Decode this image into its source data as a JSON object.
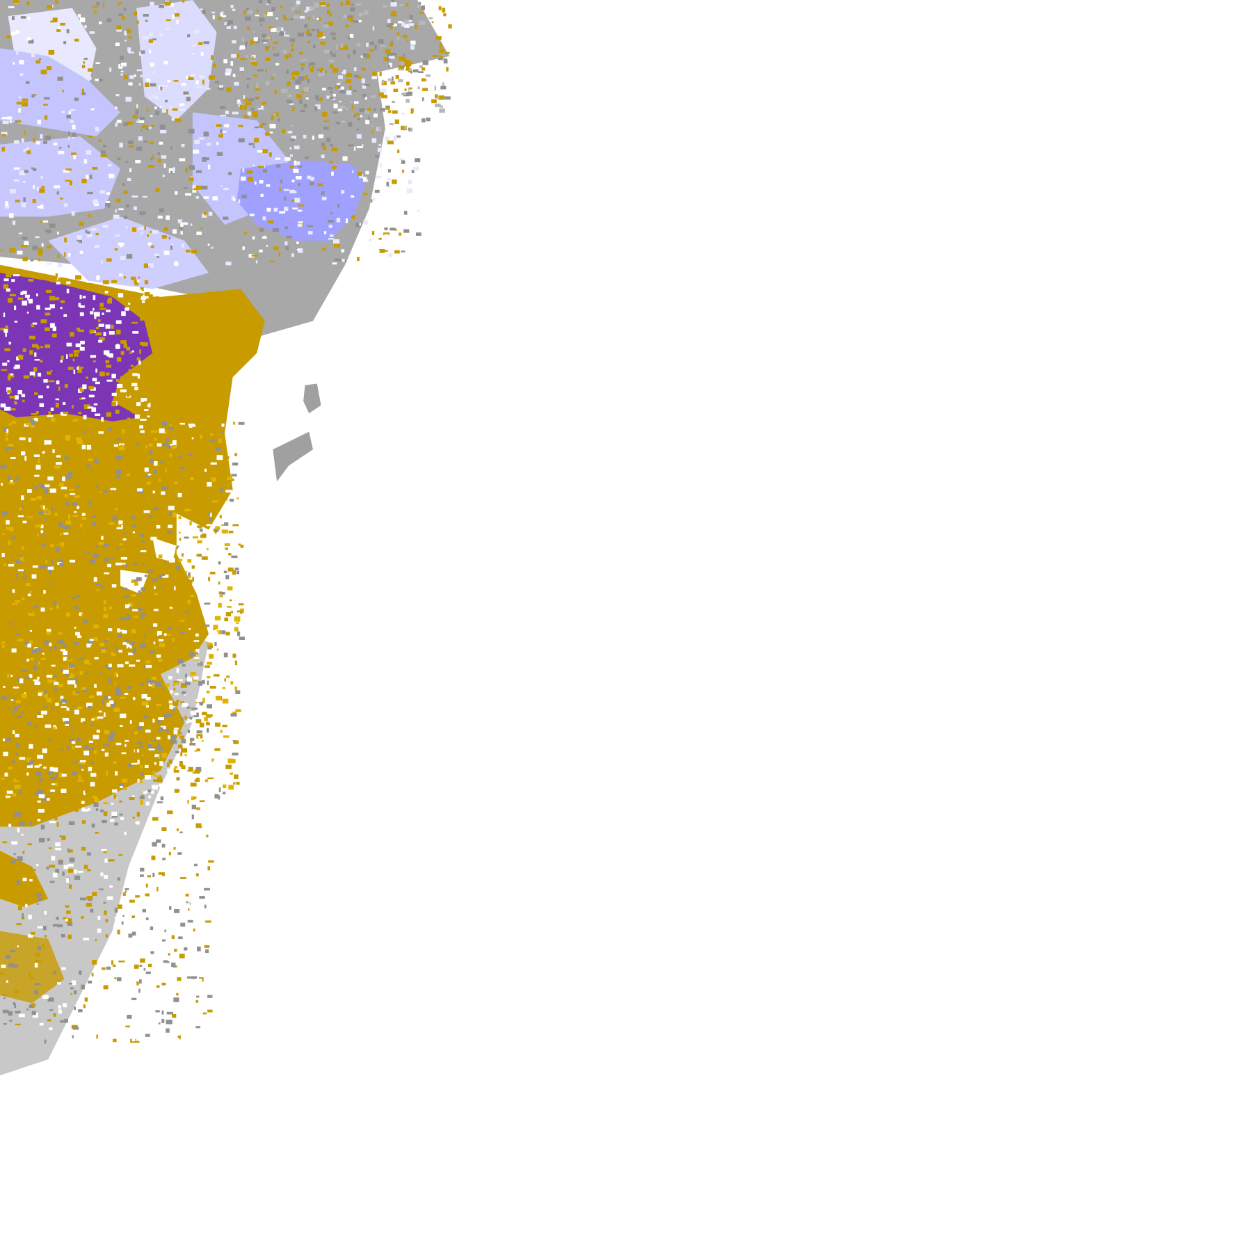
{
  "map": {
    "type": "precipitation-type radar overlay tile",
    "background": "#ffffff",
    "colors": {
      "rain": "#c89b00",
      "rain_light": "#e0b400",
      "mix": "#7b35b5",
      "snow_light": "#e8e8ff",
      "snow_medium": "#c4c4ff",
      "snow_heavy": "#a0a0ff",
      "cloud_dark": "#909090",
      "cloud_light": "#b8b8b8"
    }
  }
}
